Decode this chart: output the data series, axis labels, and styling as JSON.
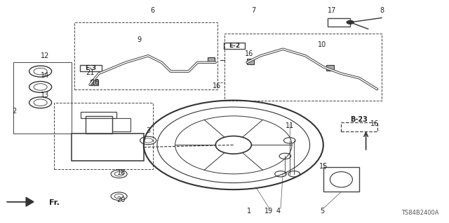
{
  "bg_color": "#ffffff",
  "fig_width": 6.4,
  "fig_height": 3.19,
  "dpi": 100,
  "diagram_code": "TS84B2400A",
  "ref_code": "B-23",
  "ref_e2": "E-2",
  "ref_e3": "E-3",
  "line_color": "#333333",
  "label_fontsize": 7,
  "small_fontsize": 6
}
